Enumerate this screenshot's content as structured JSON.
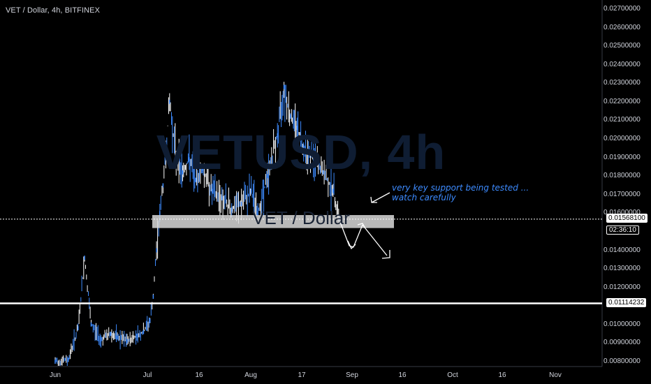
{
  "header": {
    "symbol_text": "VET / Dollar, 4h, BITFINEX"
  },
  "watermark": {
    "main": "VETUSD, 4h",
    "sub": "VET / Dollar"
  },
  "annotation": {
    "line1": "very key support being tested ...",
    "line2": "watch carefully"
  },
  "price_axis": {
    "ticks": [
      "0.02700000",
      "0.02600000",
      "0.02500000",
      "0.02400000",
      "0.02300000",
      "0.02200000",
      "0.02100000",
      "0.02000000",
      "0.01900000",
      "0.01800000",
      "0.01700000",
      "0.01600000",
      "0.01400000",
      "0.01300000",
      "0.01200000",
      "0.01000000",
      "0.00900000",
      "0.00800000"
    ],
    "last_price": "0.01568100",
    "countdown": "02:36:10",
    "level_label": "0.01114232"
  },
  "time_axis": {
    "ticks": [
      "Jun",
      "Jul",
      "16",
      "Aug",
      "17",
      "Sep",
      "16",
      "Oct",
      "16",
      "Nov"
    ]
  },
  "colors": {
    "background": "#000000",
    "candle": "#3d8bff",
    "support_zone": "#d9d9d9",
    "level_line": "#ffffff"
  },
  "chart_data": {
    "type": "line",
    "title": "VET / Dollar, 4h, BITFINEX",
    "xlabel": "",
    "ylabel": "",
    "ylim": [
      0.0078,
      0.0278
    ],
    "x_ticks": [
      "Jun",
      "Jul",
      "16",
      "Aug",
      "17",
      "Sep",
      "16",
      "Oct",
      "16",
      "Nov"
    ],
    "support_zone": [
      0.0152,
      0.0159
    ],
    "horizontal_level": 0.01114232,
    "last_price": 0.015681,
    "series": [
      {
        "x": [
          "Jun 1",
          "Jun 5",
          "Jun 8",
          "Jun 10",
          "Jun 12",
          "Jun 15",
          "Jun 18",
          "Jun 20",
          "Jun 23",
          "Jun 26",
          "Jun 28",
          "Jun 30",
          "Jul 1",
          "Jul 2",
          "Jul 3",
          "Jul 4",
          "Jul 6",
          "Jul 8",
          "Jul 10",
          "Jul 12",
          "Jul 14",
          "Jul 16",
          "Jul 19",
          "Jul 22",
          "Jul 25",
          "Jul 28",
          "Jul 31",
          "Aug 2",
          "Aug 5",
          "Aug 8",
          "Aug 10",
          "Aug 12",
          "Aug 14",
          "Aug 16",
          "Aug 19",
          "Aug 22",
          "Aug 25",
          "Aug 27"
        ],
        "values": [
          0.008,
          0.0081,
          0.0098,
          0.0136,
          0.01,
          0.0092,
          0.0095,
          0.0093,
          0.0091,
          0.0094,
          0.0096,
          0.0102,
          0.0115,
          0.014,
          0.016,
          0.0175,
          0.022,
          0.019,
          0.0182,
          0.0189,
          0.0178,
          0.0184,
          0.0172,
          0.0168,
          0.0162,
          0.0165,
          0.0172,
          0.016,
          0.018,
          0.0202,
          0.0228,
          0.0212,
          0.0206,
          0.0196,
          0.0189,
          0.0182,
          0.0172,
          0.0157
        ]
      }
    ]
  }
}
